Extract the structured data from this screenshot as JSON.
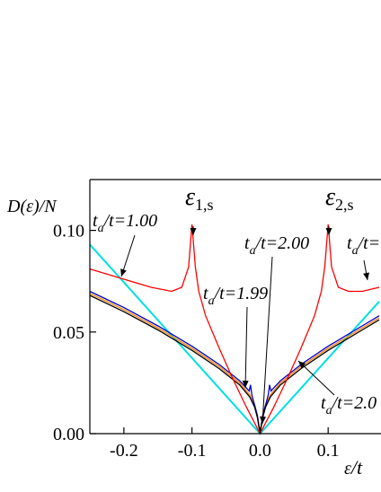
{
  "chart_data": {
    "type": "line",
    "y_label": {
      "pre": "D(",
      "eps": "ε",
      "post": ")/N"
    },
    "x_label": {
      "eps": "ε",
      "post": "/t"
    },
    "xlim": [
      -0.25,
      0.175
    ],
    "ylim": [
      0,
      0.125
    ],
    "xticks": [
      -0.2,
      -0.1,
      {
        "value": 0,
        "label": "0.0"
      },
      0.1
    ],
    "yticks": [
      {
        "value": 0,
        "label": "0.00"
      },
      0.05,
      {
        "value": 0.1,
        "label": "0.10"
      }
    ],
    "series": [
      {
        "color": "#00e0e0",
        "x": [
          -0.25,
          0,
          0.175
        ],
        "y": [
          0.093,
          0,
          0.065
        ]
      },
      {
        "color": "#ff8000",
        "x": [
          -0.25,
          -0.2,
          -0.15,
          -0.1,
          -0.06,
          -0.03,
          -0.015,
          -0.008,
          -0.004,
          -0.002,
          0,
          0.002,
          0.004,
          0.008,
          0.015,
          0.03,
          0.06,
          0.1,
          0.15,
          0.175
        ],
        "y": [
          0.069,
          0.061,
          0.052,
          0.042,
          0.033,
          0.025,
          0.019,
          0.014,
          0.009,
          0.005,
          0,
          0.005,
          0.009,
          0.014,
          0.019,
          0.025,
          0.033,
          0.042,
          0.052,
          0.057
        ]
      },
      {
        "color": "#0000cc",
        "x": [
          -0.25,
          -0.2,
          -0.15,
          -0.1,
          -0.06,
          -0.03,
          -0.016,
          -0.014,
          -0.012,
          -0.008,
          -0.004,
          0,
          0.004,
          0.008,
          0.012,
          0.014,
          0.016,
          0.03,
          0.06,
          0.1,
          0.15,
          0.175
        ],
        "y": [
          0.07,
          0.062,
          0.053,
          0.043,
          0.034,
          0.026,
          0.021,
          0.024,
          0.019,
          0.014,
          0.009,
          0,
          0.009,
          0.014,
          0.019,
          0.024,
          0.021,
          0.026,
          0.034,
          0.043,
          0.053,
          0.058
        ]
      },
      {
        "color": "#000000",
        "x": [
          -0.25,
          -0.2,
          -0.15,
          -0.1,
          -0.06,
          -0.03,
          -0.015,
          -0.008,
          -0.004,
          -0.002,
          0,
          0.002,
          0.004,
          0.008,
          0.015,
          0.03,
          0.06,
          0.1,
          0.15,
          0.175
        ],
        "y": [
          0.068,
          0.06,
          0.051,
          0.041,
          0.032,
          0.024,
          0.018,
          0.013,
          0.008,
          0.004,
          0,
          0.004,
          0.008,
          0.013,
          0.018,
          0.024,
          0.032,
          0.041,
          0.051,
          0.056
        ]
      },
      {
        "color": "#ff0000",
        "x": [
          -0.25,
          -0.22,
          -0.19,
          -0.16,
          -0.13,
          -0.115,
          -0.105,
          -0.1,
          -0.095,
          -0.09,
          -0.08,
          -0.06,
          -0.04,
          -0.02,
          0,
          0.02,
          0.04,
          0.06,
          0.08,
          0.09,
          0.095,
          0.1,
          0.105,
          0.115,
          0.13,
          0.15,
          0.175
        ],
        "y": [
          0.081,
          0.078,
          0.075,
          0.072,
          0.07,
          0.072,
          0.082,
          0.103,
          0.082,
          0.07,
          0.058,
          0.042,
          0.027,
          0.013,
          0,
          0.013,
          0.027,
          0.042,
          0.058,
          0.07,
          0.082,
          0.103,
          0.082,
          0.072,
          0.07,
          0.07,
          0.072
        ]
      }
    ],
    "annotations": [
      {
        "base": "t",
        "sub": "a",
        "rest": "/t=1.00"
      },
      {
        "base": "ε",
        "sub": "1,s"
      },
      {
        "base": "ε",
        "sub": "2,s"
      },
      {
        "base": "t",
        "sub": "a",
        "rest": "/t=2.00"
      },
      {
        "base": "t",
        "sub": "a",
        "rest": "/t="
      },
      {
        "base": "t",
        "sub": "a",
        "rest": "/t=1.99"
      },
      {
        "base": "t",
        "sub": "a",
        "rest": "/t=2.0"
      }
    ]
  }
}
